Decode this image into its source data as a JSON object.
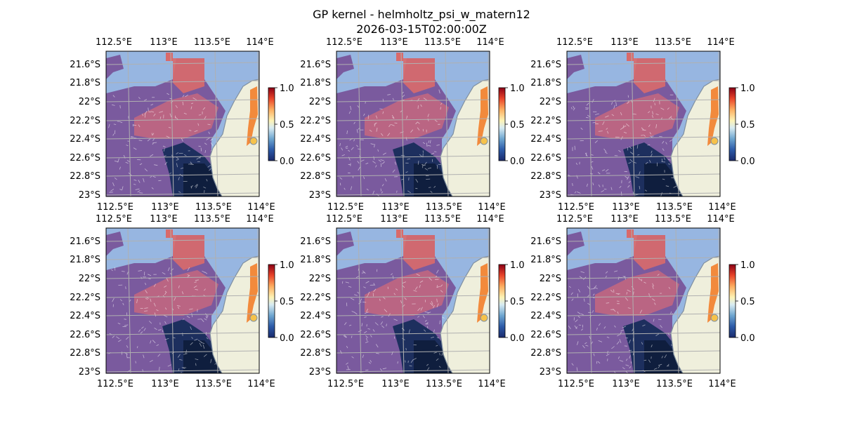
{
  "title": "GP kernel - helmholtz_psi_w_matern12",
  "timestamp": "2026-03-15T02:00:00Z",
  "map": {
    "lon_ticks": [
      "112.5°E",
      "113°E",
      "113.5°E",
      "114°E"
    ],
    "lat_ticks": [
      "21.6°S",
      "21.8°S",
      "22°S",
      "22.2°S",
      "22.4°S",
      "22.6°S",
      "22.8°S",
      "23°S"
    ],
    "lon_range": [
      112.3,
      114.2
    ],
    "lat_range": [
      -23.0,
      -21.45
    ],
    "colors": {
      "ocean": "#97b6e1",
      "land": "#efefdc",
      "coast": "#7f8f9f",
      "grid": "#b0b0b0"
    }
  },
  "colorbar": {
    "ticks": [
      "1.0",
      "0.5",
      "0.0"
    ],
    "range": [
      0.0,
      1.0
    ],
    "colormap": "RdYlBu_r"
  },
  "panels": [
    {
      "id": "panel-1"
    },
    {
      "id": "panel-2"
    },
    {
      "id": "panel-3"
    },
    {
      "id": "panel-4"
    },
    {
      "id": "panel-5"
    },
    {
      "id": "panel-6"
    }
  ]
}
